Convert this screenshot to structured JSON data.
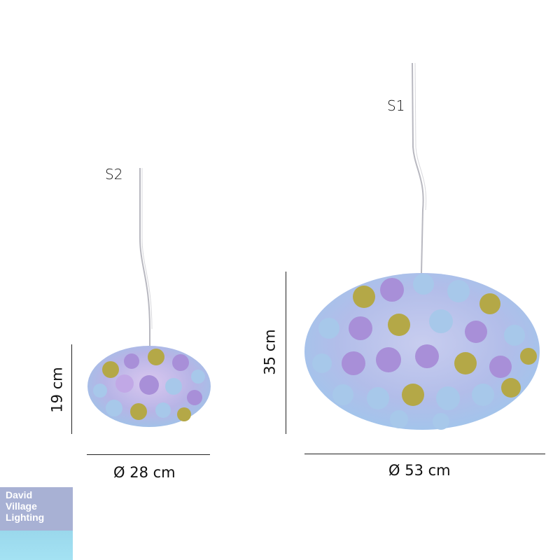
{
  "lamps": {
    "small": {
      "label": "S2",
      "height_label": "19 cm",
      "diameter_label": "Ø 28 cm"
    },
    "large": {
      "label": "S1",
      "height_label": "35 cm",
      "diameter_label": "Ø 53 cm"
    }
  },
  "logo": {
    "line1": "David",
    "line2": "Village",
    "line3": "Lighting"
  },
  "colors": {
    "lavender": "#a88fd8",
    "light_blue": "#a7c8ea",
    "olive": "#b4a847",
    "logo_blue": "#a8b1d4",
    "logo_cyan": "#9ad8ec"
  }
}
